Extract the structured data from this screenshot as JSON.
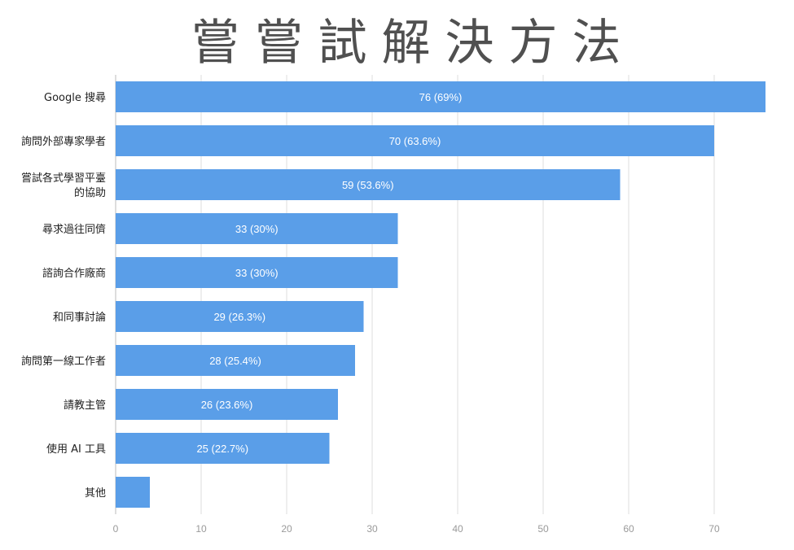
{
  "colors": {
    "bar": "#5a9ee8",
    "grid": "#dddddd",
    "title": "#505050"
  },
  "chart_data": {
    "type": "bar",
    "orientation": "horizontal",
    "title": "嘗嘗試解決方法",
    "xlabel": "",
    "ylabel": "",
    "xlim": [
      0,
      76
    ],
    "xticks": [
      0,
      10,
      20,
      30,
      40,
      50,
      60,
      70
    ],
    "grid": true,
    "categories": [
      [
        "Google 搜尋"
      ],
      [
        "詢問外部專家學者"
      ],
      [
        "嘗試各式學習平臺",
        "的協助"
      ],
      [
        "尋求過往同儕"
      ],
      [
        "諮詢合作廠商"
      ],
      [
        "和同事討論"
      ],
      [
        "詢問第一線工作者"
      ],
      [
        "請教主管"
      ],
      [
        "使用 AI 工具"
      ],
      [
        "其他"
      ]
    ],
    "values": [
      76,
      70,
      59,
      33,
      33,
      29,
      28,
      26,
      25,
      4
    ],
    "data_labels": [
      "76 (69%)",
      "70 (63.6%)",
      "59 (53.6%)",
      "33 (30%)",
      "33 (30%)",
      "29 (26.3%)",
      "28 (25.4%)",
      "26 (23.6%)",
      "25 (22.7%)",
      ""
    ]
  }
}
